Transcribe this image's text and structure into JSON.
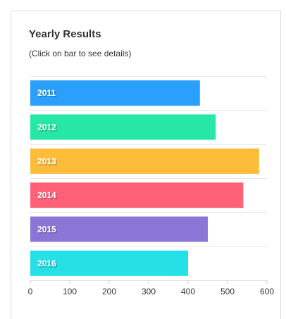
{
  "card": {
    "title": "Yearly Results",
    "subtitle": "(Click on bar to see details)"
  },
  "chart_data": {
    "type": "bar",
    "orientation": "horizontal",
    "title": "Yearly Results",
    "subtitle": "(Click on bar to see details)",
    "categories": [
      "2011",
      "2012",
      "2013",
      "2014",
      "2015",
      "2016"
    ],
    "values": [
      430,
      470,
      580,
      540,
      450,
      400
    ],
    "colors": [
      "#2b9ffc",
      "#26e7a6",
      "#febc3b",
      "#ff6178",
      "#8b75d7",
      "#26e0e8"
    ],
    "xlim": [
      0,
      600
    ],
    "xticks": [
      "0",
      "100",
      "200",
      "300",
      "400",
      "500",
      "600"
    ],
    "grid": true,
    "legend": false
  }
}
